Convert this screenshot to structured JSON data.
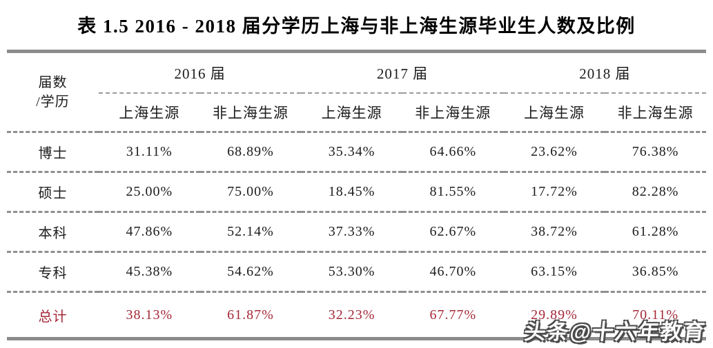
{
  "title": "表 1.5  2016 - 2018 届分学历上海与非上海生源毕业生人数及比例",
  "table": {
    "corner_header": {
      "line1": "届数",
      "line2": "/学历"
    },
    "year_groups": [
      {
        "label": "2016 届"
      },
      {
        "label": "2017 届"
      },
      {
        "label": "2018 届"
      }
    ],
    "sub_headers": [
      "上海生源",
      "非上海生源",
      "上海生源",
      "非上海生源",
      "上海生源",
      "非上海生源"
    ],
    "rows": [
      {
        "label": "博士",
        "values": [
          "31.11%",
          "68.89%",
          "35.34%",
          "64.66%",
          "23.62%",
          "76.38%"
        ]
      },
      {
        "label": "硕士",
        "values": [
          "25.00%",
          "75.00%",
          "18.45%",
          "81.55%",
          "17.72%",
          "82.28%"
        ]
      },
      {
        "label": "本科",
        "values": [
          "47.86%",
          "52.14%",
          "37.33%",
          "62.67%",
          "38.72%",
          "61.28%"
        ]
      },
      {
        "label": "专科",
        "values": [
          "45.38%",
          "54.62%",
          "53.30%",
          "46.70%",
          "63.15%",
          "36.85%"
        ]
      }
    ],
    "total_row": {
      "label": "总计",
      "values": [
        "38.13%",
        "61.87%",
        "32.23%",
        "67.77%",
        "29.89%",
        "70.11%"
      ]
    }
  },
  "watermark": "头条@十六年教育",
  "colors": {
    "accent_red": "#a52837",
    "line_gray": "#8c8c8c",
    "text": "#1c1c1c"
  }
}
